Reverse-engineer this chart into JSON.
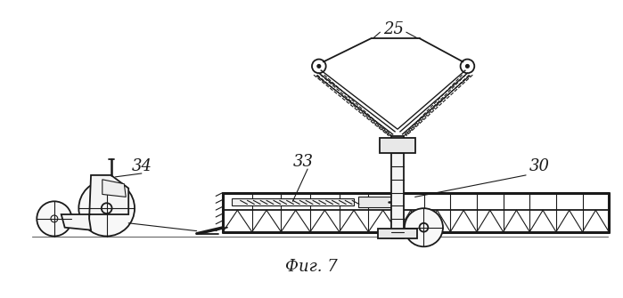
{
  "bg_color": "#ffffff",
  "line_color": "#1a1a1a",
  "title": "Фиг. 7",
  "title_fontsize": 13,
  "figsize": [
    6.99,
    3.35
  ],
  "dpi": 100
}
